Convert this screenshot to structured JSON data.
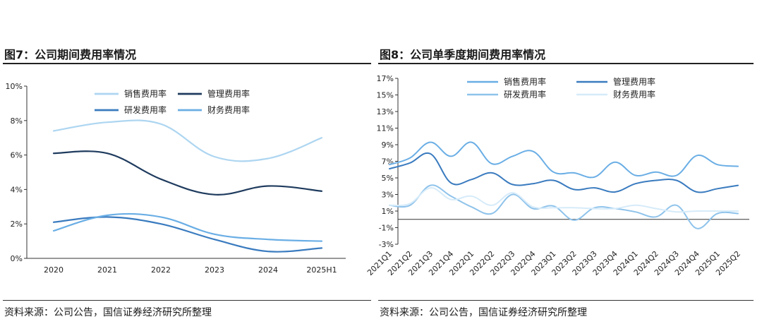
{
  "left": {
    "figure_title": "图7：公司期间费用率情况",
    "source": "资料来源：公司公告，国信证券经济研究所整理"
  },
  "right": {
    "figure_title": "图8：公司单季度期间费用率情况",
    "source": "资料来源：公司公告，国信证券经济研究所整理"
  },
  "chart_data": [
    {
      "type": "line",
      "smooth": true,
      "categories": [
        "2020",
        "2021",
        "2022",
        "2023",
        "2024",
        "2025H1"
      ],
      "y_ticks": [
        "0%",
        "2%",
        "4%",
        "6%",
        "8%",
        "10%"
      ],
      "ylim": [
        0,
        10
      ],
      "unit": "%",
      "grid": false,
      "legend_position": "top-center",
      "series": [
        {
          "name": "销售费用率",
          "color": "#aed6f1",
          "values": [
            7.4,
            7.9,
            7.8,
            5.9,
            5.8,
            7.0
          ]
        },
        {
          "name": "管理费用率",
          "color": "#1f3b5e",
          "values": [
            6.1,
            6.1,
            4.6,
            3.7,
            4.2,
            3.9
          ]
        },
        {
          "name": "研发费用率",
          "color": "#3a7bbf",
          "values": [
            2.1,
            2.4,
            2.0,
            1.1,
            0.4,
            0.6
          ]
        },
        {
          "name": "财务费用率",
          "color": "#6aaee5",
          "values": [
            1.6,
            2.5,
            2.4,
            1.4,
            1.1,
            1.0
          ]
        }
      ]
    },
    {
      "type": "line",
      "smooth": true,
      "categories": [
        "2021Q1",
        "2021Q2",
        "2021Q3",
        "2021Q4",
        "2022Q1",
        "2022Q2",
        "2022Q3",
        "2022Q4",
        "2023Q1",
        "2023Q2",
        "2023Q3",
        "2023Q4",
        "2024Q1",
        "2024Q2",
        "2024Q3",
        "2024Q4",
        "2025Q1",
        "2025Q2"
      ],
      "y_ticks": [
        "-3%",
        "-1%",
        "1%",
        "3%",
        "5%",
        "7%",
        "9%",
        "11%",
        "13%",
        "15%",
        "17%"
      ],
      "ylim": [
        -3,
        17
      ],
      "unit": "%",
      "grid": false,
      "legend_position": "top-center",
      "series": [
        {
          "name": "销售费用率",
          "color": "#6aaee5",
          "values": [
            6.6,
            7.4,
            9.3,
            7.6,
            9.3,
            6.7,
            7.6,
            8.2,
            5.7,
            5.6,
            5.1,
            6.9,
            5.3,
            5.7,
            5.3,
            7.7,
            6.6,
            6.4
          ]
        },
        {
          "name": "管理费用率",
          "color": "#3a7bbf",
          "values": [
            6.1,
            6.8,
            7.9,
            4.4,
            4.8,
            5.6,
            4.2,
            4.3,
            4.7,
            3.6,
            3.8,
            3.3,
            4.3,
            4.7,
            4.7,
            3.3,
            3.7,
            4.1
          ]
        },
        {
          "name": "研发费用率",
          "color": "#8fc3eb",
          "values": [
            1.7,
            1.7,
            4.1,
            2.8,
            1.5,
            0.7,
            3.0,
            1.3,
            1.6,
            -0.1,
            1.4,
            1.3,
            0.9,
            0.3,
            1.7,
            -1.1,
            0.7,
            0.7
          ]
        },
        {
          "name": "财务费用率",
          "color": "#d6ebf9",
          "values": [
            1.7,
            1.9,
            3.8,
            2.4,
            2.8,
            1.7,
            3.2,
            1.5,
            1.4,
            1.4,
            1.3,
            1.3,
            1.7,
            1.3,
            0.9,
            1.0,
            1.0,
            1.0
          ]
        }
      ]
    }
  ]
}
